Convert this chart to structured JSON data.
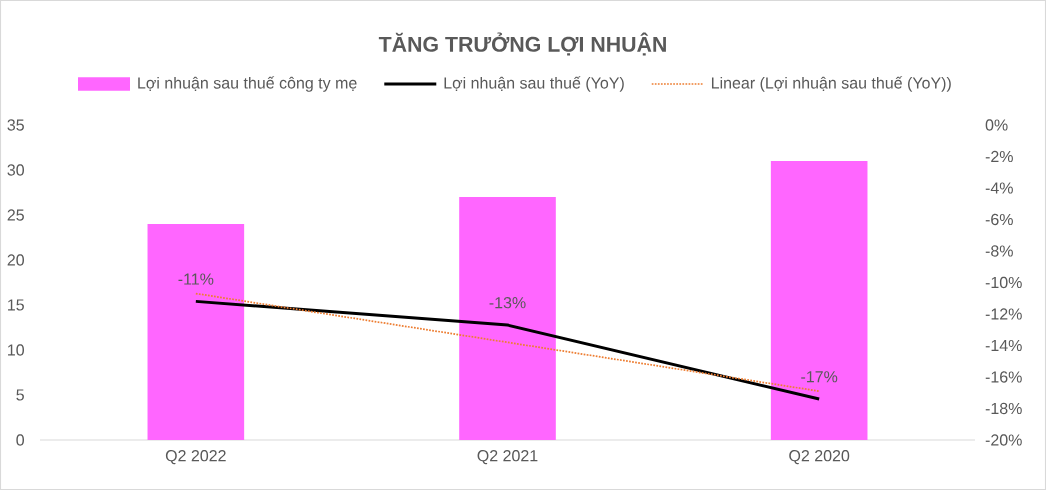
{
  "chart_data": {
    "type": "bar",
    "title": "TĂNG TRƯỞNG LỢI NHUẬN",
    "categories": [
      "Q2 2022",
      "Q2 2021",
      "Q2 2020"
    ],
    "series": [
      {
        "name": "Lợi nhuận sau thuế công ty mẹ",
        "color": "#ff66ff",
        "values": [
          24,
          27,
          31
        ]
      },
      {
        "name": "Lợi nhuận sau thuế (YoY)",
        "type": "line",
        "axis": "y2",
        "color": "#000000",
        "line_style": "solid",
        "values": [
          -11.2,
          -12.7,
          -17.4
        ],
        "value_labels": [
          "-11%",
          "-13%",
          "-17%"
        ]
      },
      {
        "name": "Linear (Lợi nhuận sau thuế (YoY))",
        "type": "line",
        "axis": "y2",
        "color": "#ed7d31",
        "line_style": "dotted",
        "values": [
          -10.7,
          -13.8,
          -16.9
        ]
      }
    ],
    "ylim": [
      0,
      35
    ],
    "yticks": [
      0,
      5,
      10,
      15,
      20,
      25,
      30,
      35
    ],
    "y2lim": [
      -20,
      0
    ],
    "y2ticks": [
      {
        "value": -20,
        "label": "-20%"
      },
      {
        "value": -18,
        "label": "-18%"
      },
      {
        "value": -16,
        "label": "-16%"
      },
      {
        "value": -14,
        "label": "-14%"
      },
      {
        "value": -12,
        "label": "-12%"
      },
      {
        "value": -10,
        "label": "-10%"
      },
      {
        "value": -8,
        "label": "-8%"
      },
      {
        "value": -6,
        "label": "-6%"
      },
      {
        "value": -4,
        "label": "-4%"
      },
      {
        "value": -2,
        "label": "-2%"
      },
      {
        "value": 0,
        "label": "0%"
      }
    ],
    "legend": "top"
  }
}
